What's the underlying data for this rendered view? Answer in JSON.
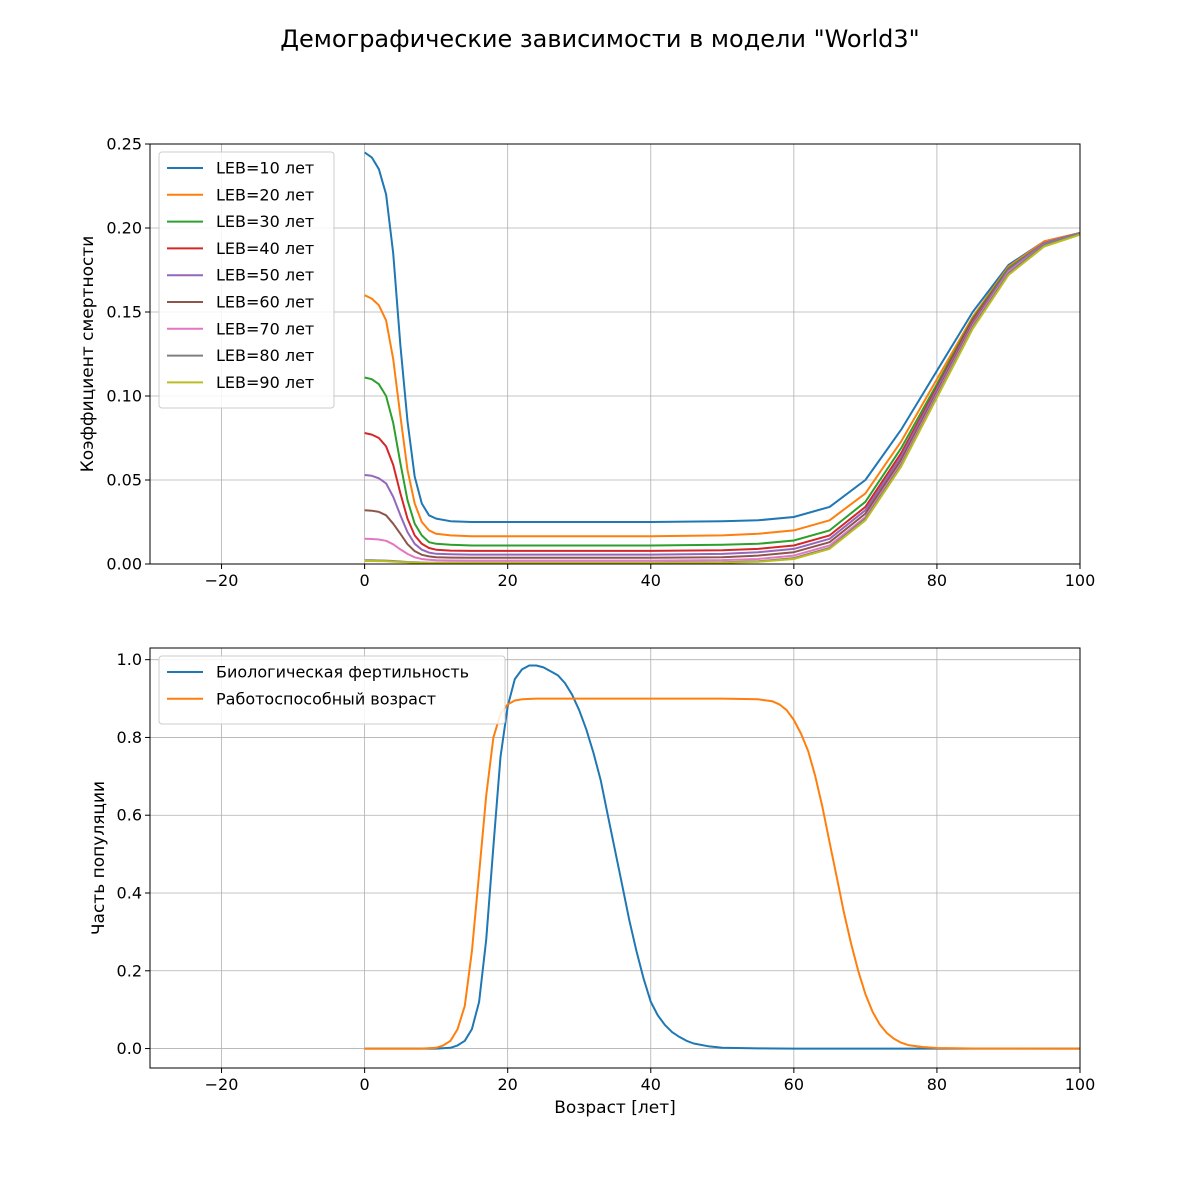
{
  "figure_title": "Демографические зависимости в модели \"World3\"",
  "chart_data": [
    {
      "type": "line",
      "title": "",
      "xlabel": "",
      "ylabel": "Коэффициент смертности",
      "xlim": [
        -30,
        100
      ],
      "ylim": [
        0,
        0.25
      ],
      "xticks": [
        -20,
        0,
        20,
        40,
        60,
        80,
        100
      ],
      "xtick_labels": [
        "−20",
        "0",
        "20",
        "40",
        "60",
        "80",
        "100"
      ],
      "yticks": [
        0,
        0.05,
        0.1,
        0.15,
        0.2,
        0.25
      ],
      "ytick_labels": [
        "0.00",
        "0.05",
        "0.10",
        "0.15",
        "0.20",
        "0.25"
      ],
      "grid": true,
      "legend_position": "upper-left",
      "x": [
        0,
        1,
        2,
        3,
        4,
        5,
        6,
        7,
        8,
        9,
        10,
        12,
        15,
        20,
        30,
        40,
        50,
        55,
        60,
        65,
        70,
        75,
        80,
        85,
        90,
        95,
        100
      ],
      "series": [
        {
          "name": "LEB=10 лет",
          "color": "#1f77b4",
          "values": [
            0.245,
            0.242,
            0.235,
            0.22,
            0.185,
            0.13,
            0.085,
            0.052,
            0.036,
            0.029,
            0.027,
            0.0255,
            0.025,
            0.025,
            0.025,
            0.025,
            0.0255,
            0.026,
            0.028,
            0.034,
            0.05,
            0.08,
            0.115,
            0.15,
            0.178,
            0.192,
            0.197
          ]
        },
        {
          "name": "LEB=20 лет",
          "color": "#ff7f0e",
          "values": [
            0.16,
            0.158,
            0.154,
            0.145,
            0.122,
            0.088,
            0.056,
            0.036,
            0.025,
            0.02,
            0.018,
            0.017,
            0.0165,
            0.0165,
            0.0165,
            0.0165,
            0.017,
            0.018,
            0.02,
            0.026,
            0.042,
            0.073,
            0.11,
            0.147,
            0.177,
            0.192,
            0.197
          ]
        },
        {
          "name": "LEB=30 лет",
          "color": "#2ca02c",
          "values": [
            0.111,
            0.11,
            0.107,
            0.1,
            0.084,
            0.06,
            0.038,
            0.024,
            0.017,
            0.013,
            0.012,
            0.0115,
            0.011,
            0.011,
            0.011,
            0.011,
            0.0115,
            0.012,
            0.014,
            0.02,
            0.037,
            0.069,
            0.107,
            0.146,
            0.176,
            0.191,
            0.197
          ]
        },
        {
          "name": "LEB=40 лет",
          "color": "#d62728",
          "values": [
            0.078,
            0.077,
            0.075,
            0.07,
            0.059,
            0.042,
            0.027,
            0.017,
            0.012,
            0.0095,
            0.0085,
            0.008,
            0.0078,
            0.0078,
            0.0078,
            0.0078,
            0.0082,
            0.009,
            0.011,
            0.017,
            0.034,
            0.066,
            0.105,
            0.145,
            0.175,
            0.191,
            0.197
          ]
        },
        {
          "name": "LEB=50 лет",
          "color": "#9467bd",
          "values": [
            0.053,
            0.0525,
            0.051,
            0.048,
            0.04,
            0.029,
            0.019,
            0.012,
            0.0085,
            0.0068,
            0.0061,
            0.0058,
            0.0056,
            0.0056,
            0.0056,
            0.0056,
            0.006,
            0.007,
            0.009,
            0.015,
            0.032,
            0.064,
            0.104,
            0.144,
            0.175,
            0.191,
            0.197
          ]
        },
        {
          "name": "LEB=60 лет",
          "color": "#8c564b",
          "values": [
            0.032,
            0.0317,
            0.031,
            0.029,
            0.024,
            0.018,
            0.0118,
            0.0077,
            0.0055,
            0.0045,
            0.004,
            0.0038,
            0.0037,
            0.0037,
            0.0037,
            0.0037,
            0.004,
            0.005,
            0.007,
            0.013,
            0.03,
            0.062,
            0.102,
            0.143,
            0.174,
            0.19,
            0.197
          ]
        },
        {
          "name": "LEB=70 лет",
          "color": "#e377c2",
          "values": [
            0.015,
            0.0149,
            0.0146,
            0.0138,
            0.0117,
            0.0087,
            0.006,
            0.004,
            0.003,
            0.0025,
            0.0022,
            0.0021,
            0.002,
            0.002,
            0.002,
            0.002,
            0.0023,
            0.003,
            0.005,
            0.011,
            0.028,
            0.06,
            0.101,
            0.142,
            0.174,
            0.19,
            0.197
          ]
        },
        {
          "name": "LEB=80 лет",
          "color": "#7f7f7f",
          "values": [
            0.0022,
            0.0022,
            0.0021,
            0.002,
            0.0018,
            0.0015,
            0.0012,
            0.001,
            0.0009,
            0.0008,
            0.0008,
            0.0008,
            0.0008,
            0.0008,
            0.0008,
            0.0008,
            0.001,
            0.0016,
            0.0035,
            0.0095,
            0.027,
            0.059,
            0.1,
            0.141,
            0.173,
            0.19,
            0.197
          ]
        },
        {
          "name": "LEB=90 лет",
          "color": "#bcbd22",
          "values": [
            0.0018,
            0.0018,
            0.0017,
            0.0016,
            0.0014,
            0.0012,
            0.001,
            0.0008,
            0.0007,
            0.0006,
            0.0006,
            0.0006,
            0.0006,
            0.0006,
            0.0006,
            0.0006,
            0.0008,
            0.0013,
            0.003,
            0.009,
            0.026,
            0.058,
            0.099,
            0.14,
            0.172,
            0.189,
            0.196
          ]
        }
      ]
    },
    {
      "type": "line",
      "title": "",
      "xlabel": "Возраст [лет]",
      "ylabel": "Часть популяции",
      "xlim": [
        -30,
        100
      ],
      "ylim": [
        -0.05,
        1.03
      ],
      "xticks": [
        -20,
        0,
        20,
        40,
        60,
        80,
        100
      ],
      "xtick_labels": [
        "−20",
        "0",
        "20",
        "40",
        "60",
        "80",
        "100"
      ],
      "yticks": [
        0,
        0.2,
        0.4,
        0.6,
        0.8,
        1.0
      ],
      "ytick_labels": [
        "0.0",
        "0.2",
        "0.4",
        "0.6",
        "0.8",
        "1.0"
      ],
      "grid": true,
      "legend_position": "upper-left",
      "series": [
        {
          "name": "Биологическая фертильность",
          "color": "#1f77b4",
          "x": [
            0,
            10,
            12,
            13,
            14,
            15,
            16,
            17,
            18,
            19,
            20,
            21,
            22,
            23,
            24,
            25,
            26,
            27,
            28,
            29,
            30,
            31,
            32,
            33,
            34,
            35,
            36,
            37,
            38,
            39,
            40,
            41,
            42,
            43,
            44,
            45,
            46,
            48,
            50,
            55,
            60,
            70,
            80,
            100
          ],
          "values": [
            0,
            0,
            0.002,
            0.008,
            0.02,
            0.05,
            0.12,
            0.28,
            0.52,
            0.75,
            0.88,
            0.95,
            0.975,
            0.985,
            0.985,
            0.98,
            0.97,
            0.96,
            0.94,
            0.91,
            0.87,
            0.82,
            0.76,
            0.69,
            0.6,
            0.51,
            0.42,
            0.33,
            0.25,
            0.18,
            0.12,
            0.085,
            0.06,
            0.042,
            0.03,
            0.02,
            0.013,
            0.006,
            0.002,
            0.0005,
            0,
            0,
            0,
            0
          ]
        },
        {
          "name": "Работоспособный возраст",
          "color": "#ff7f0e",
          "x": [
            0,
            8,
            10,
            11,
            12,
            13,
            14,
            15,
            16,
            17,
            18,
            19,
            20,
            21,
            22,
            24,
            30,
            40,
            50,
            55,
            57,
            58,
            59,
            60,
            61,
            62,
            63,
            64,
            65,
            66,
            67,
            68,
            69,
            70,
            71,
            72,
            73,
            74,
            75,
            76,
            78,
            80,
            85,
            100
          ],
          "values": [
            0,
            0,
            0.002,
            0.008,
            0.02,
            0.05,
            0.11,
            0.25,
            0.45,
            0.65,
            0.8,
            0.86,
            0.885,
            0.895,
            0.898,
            0.9,
            0.9,
            0.9,
            0.9,
            0.898,
            0.893,
            0.885,
            0.87,
            0.845,
            0.81,
            0.765,
            0.7,
            0.62,
            0.53,
            0.44,
            0.35,
            0.27,
            0.2,
            0.14,
            0.095,
            0.062,
            0.04,
            0.025,
            0.015,
            0.009,
            0.004,
            0.0015,
            0.0002,
            0
          ]
        }
      ]
    }
  ]
}
